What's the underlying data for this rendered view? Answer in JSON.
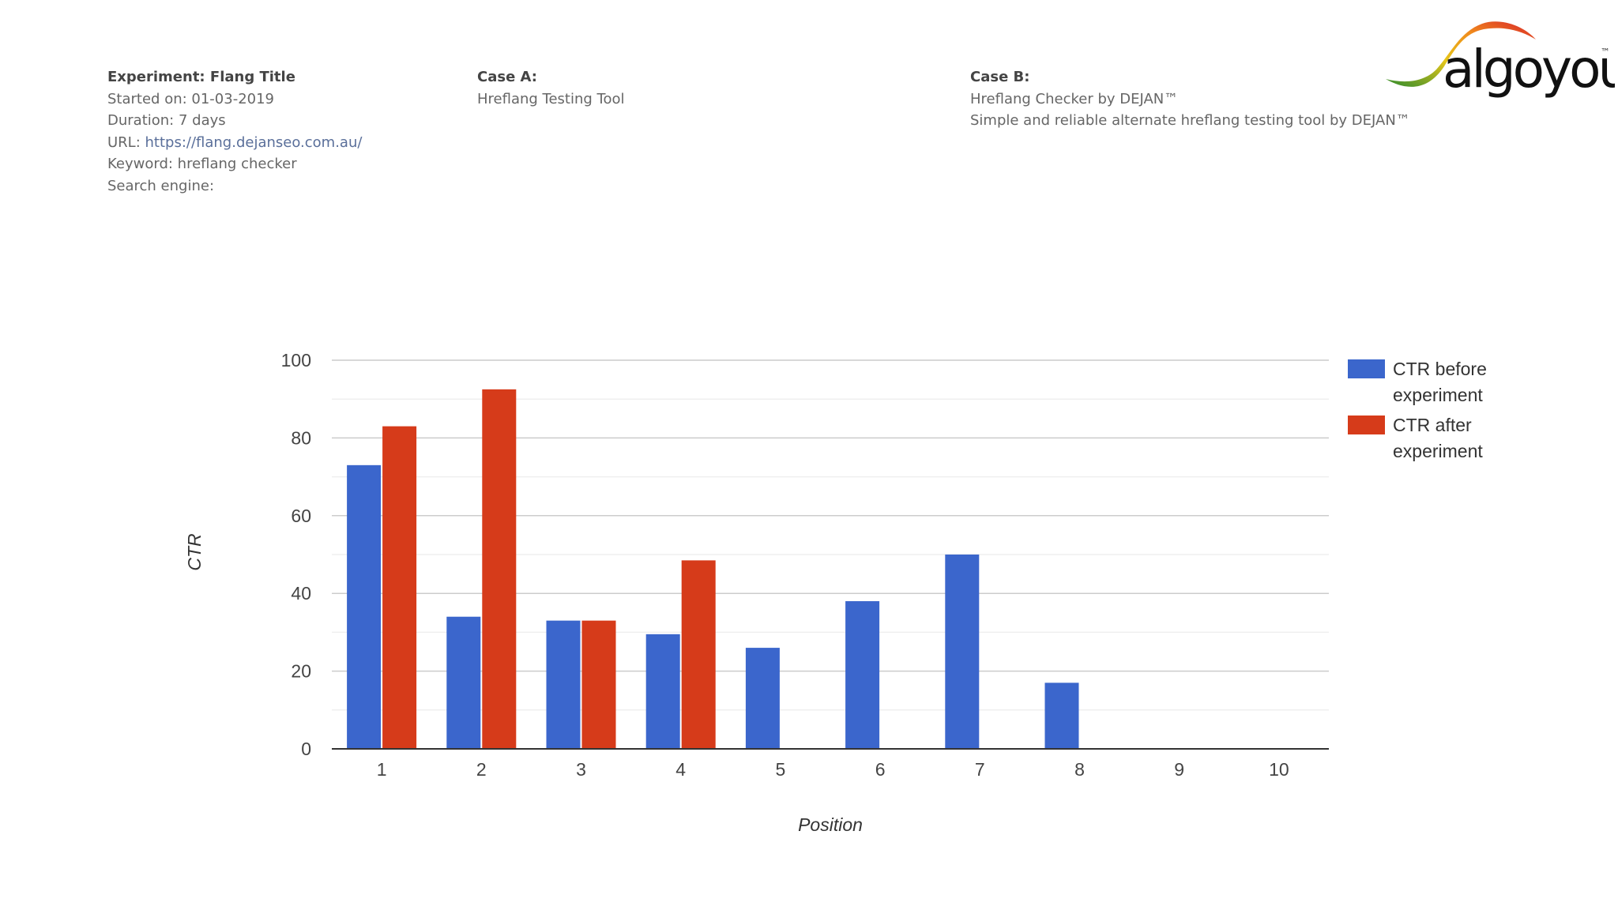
{
  "experiment": {
    "title": "Experiment: Flang Title",
    "started": "Started on: 01-03-2019",
    "duration": "Duration: 7 days",
    "url_label": "URL: ",
    "url": "https://flang.dejanseo.com.au/",
    "keyword": "Keyword: hreflang checker",
    "search_engine": "Search engine:"
  },
  "case_a": {
    "heading": "Case A:",
    "title": "Hreflang Testing Tool"
  },
  "case_b": {
    "heading": "Case B:",
    "title": "Hreflang Checker by DEJAN™",
    "description": "Simple and reliable alternate hreflang testing tool by DEJAN™"
  },
  "logo": {
    "text": "algoyou",
    "tm": "™"
  },
  "chart_data": {
    "type": "bar",
    "categories": [
      "1",
      "2",
      "3",
      "4",
      "5",
      "6",
      "7",
      "8",
      "9",
      "10"
    ],
    "series": [
      {
        "name": "CTR before experiment",
        "legend_lines": [
          "CTR before",
          "experiment"
        ],
        "color": "#3b66cc",
        "values": [
          73,
          34,
          33,
          29.5,
          26,
          38,
          50,
          17,
          0,
          0
        ]
      },
      {
        "name": "CTR after experiment",
        "legend_lines": [
          "CTR after",
          "experiment"
        ],
        "color": "#d63b1a",
        "values": [
          83,
          92.5,
          33,
          48.5,
          0,
          0,
          0,
          0,
          0,
          0
        ]
      }
    ],
    "xlabel": "Position",
    "ylabel": "CTR",
    "ylim": [
      0,
      100
    ],
    "yticks": [
      0,
      20,
      40,
      60,
      80,
      100
    ],
    "grid": true,
    "legend_position": "right"
  }
}
